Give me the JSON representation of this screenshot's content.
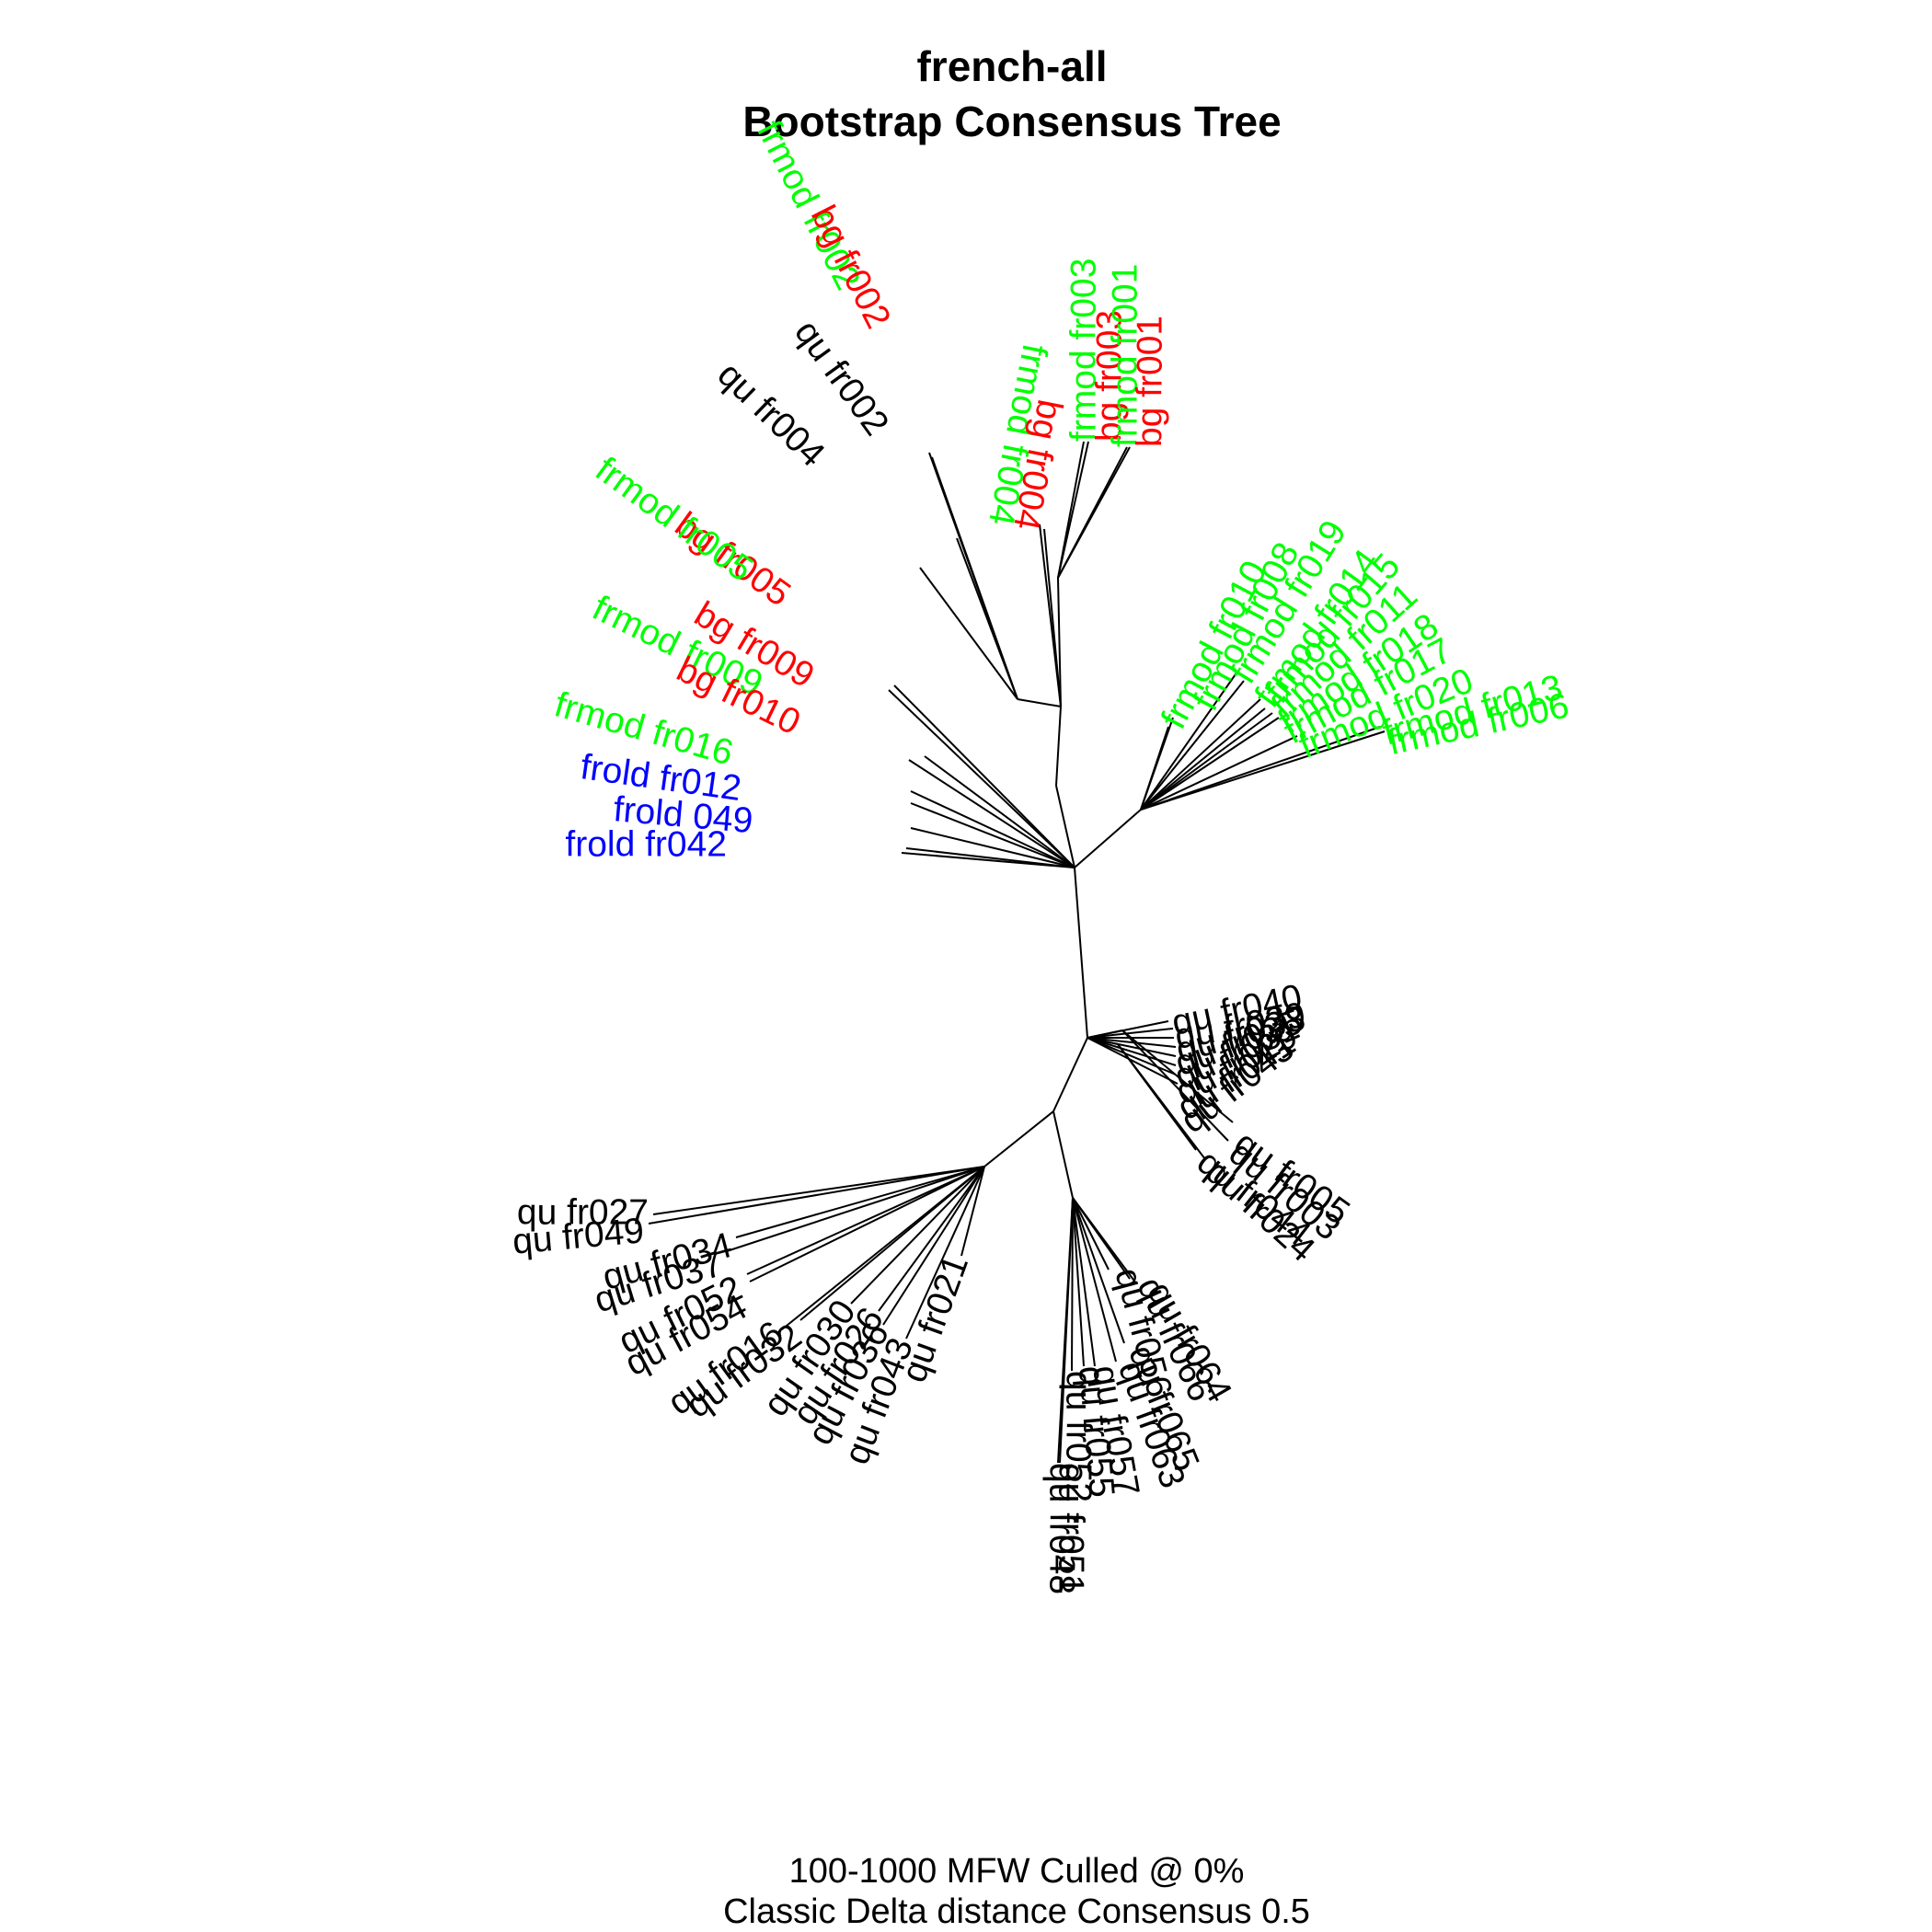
{
  "title_line1": "french-all",
  "title_line2": "Bootstrap Consensus Tree",
  "caption_line1": "100-1000 MFW  Culled @ 0%",
  "caption_line2": "Classic Delta distance Consensus 0.5",
  "colors": {
    "bg": "#ff0000",
    "frmod": "#00ff00",
    "frold": "#0000ff",
    "qu": "#000000"
  },
  "tree": {
    "type": "unrooted-radial",
    "groups": [
      {
        "name": "bg",
        "color": "#ff0000"
      },
      {
        "name": "frmod",
        "color": "#00ff00"
      },
      {
        "name": "frold",
        "color": "#0000ff"
      },
      {
        "name": "qu",
        "color": "#000000"
      }
    ],
    "tips": [
      "frmod fr003",
      "bg fr003",
      "frmod fr001",
      "bg fr001",
      "frmod fr004",
      "bg fr004",
      "frmod fr002",
      "bg fr002",
      "qu fr002",
      "qu fr004",
      "bg fr005",
      "frmod fr005",
      "bg fr009",
      "frmod fr009",
      "bg fr010",
      "frmod fr016",
      "frold fr012",
      "frold 049",
      "frold fr042",
      "frmod fr010",
      "frmod fr008",
      "frmod fr019",
      "frmod fr014",
      "frmod fr015",
      "frmod fr011",
      "frmod fr018",
      "frmod fr017",
      "frmod fr020",
      "frmod fr013",
      "frmod fr006",
      "qu fr040",
      "qu fr039",
      "qu fr033",
      "qu fr035",
      "qu fr031",
      "qu fr029",
      "qu fr041",
      "qu fr043",
      "qu fr005",
      "qu fr003",
      "qu fr044",
      "qu fr024",
      "qu fr027",
      "qu fr049",
      "qu fr034",
      "qu fr037",
      "qu fr052",
      "qu fr054",
      "qu fr016",
      "qu fr032",
      "qu fr030",
      "qu fr026",
      "qu fr036",
      "qu fr043",
      "qu fr021",
      "qu fr048",
      "qu fr051",
      "qu fr052",
      "qu fr055",
      "qu fr057",
      "qu fr056",
      "qu fr063",
      "qu fr065",
      "qu fr066",
      "qu fr064"
    ]
  }
}
